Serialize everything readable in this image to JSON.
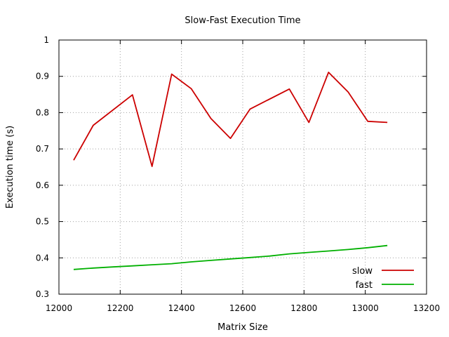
{
  "chart_data": {
    "type": "line",
    "title": "Slow-Fast Execution Time",
    "xlabel": "Matrix Size",
    "ylabel": "Execution time (s)",
    "xlim": [
      12000,
      13200
    ],
    "ylim": [
      0.3,
      1.0
    ],
    "xticks": [
      12000,
      12200,
      12400,
      12600,
      12800,
      13000,
      13200
    ],
    "yticks": [
      0.3,
      0.4,
      0.5,
      0.6,
      0.7,
      0.8,
      0.9,
      1.0
    ],
    "xtick_labels": [
      "12000",
      "12200",
      "12400",
      "12600",
      "12800",
      "13000",
      "13200"
    ],
    "ytick_labels": [
      "0.3",
      "0.4",
      "0.5",
      "0.6",
      "0.7",
      "0.8",
      "0.9",
      "1"
    ],
    "grid": true,
    "legend_position": "bottom-right",
    "series": [
      {
        "name": "slow",
        "color": "#cc0000",
        "x": [
          12048,
          12112,
          12240,
          12304,
          12368,
          12432,
          12496,
          12560,
          12624,
          12752,
          12816,
          12880,
          12944,
          13008,
          13072
        ],
        "y": [
          0.669,
          0.765,
          0.849,
          0.652,
          0.906,
          0.866,
          0.784,
          0.729,
          0.81,
          0.865,
          0.773,
          0.911,
          0.857,
          0.776,
          0.773
        ]
      },
      {
        "name": "fast",
        "color": "#00b000",
        "x": [
          12048,
          12112,
          12176,
          12240,
          12304,
          12368,
          12432,
          12496,
          12560,
          12624,
          12688,
          12752,
          12816,
          12880,
          12944,
          13008,
          13072
        ],
        "y": [
          0.368,
          0.372,
          0.375,
          0.378,
          0.381,
          0.384,
          0.389,
          0.393,
          0.397,
          0.401,
          0.405,
          0.411,
          0.415,
          0.419,
          0.423,
          0.428,
          0.434
        ]
      }
    ]
  }
}
